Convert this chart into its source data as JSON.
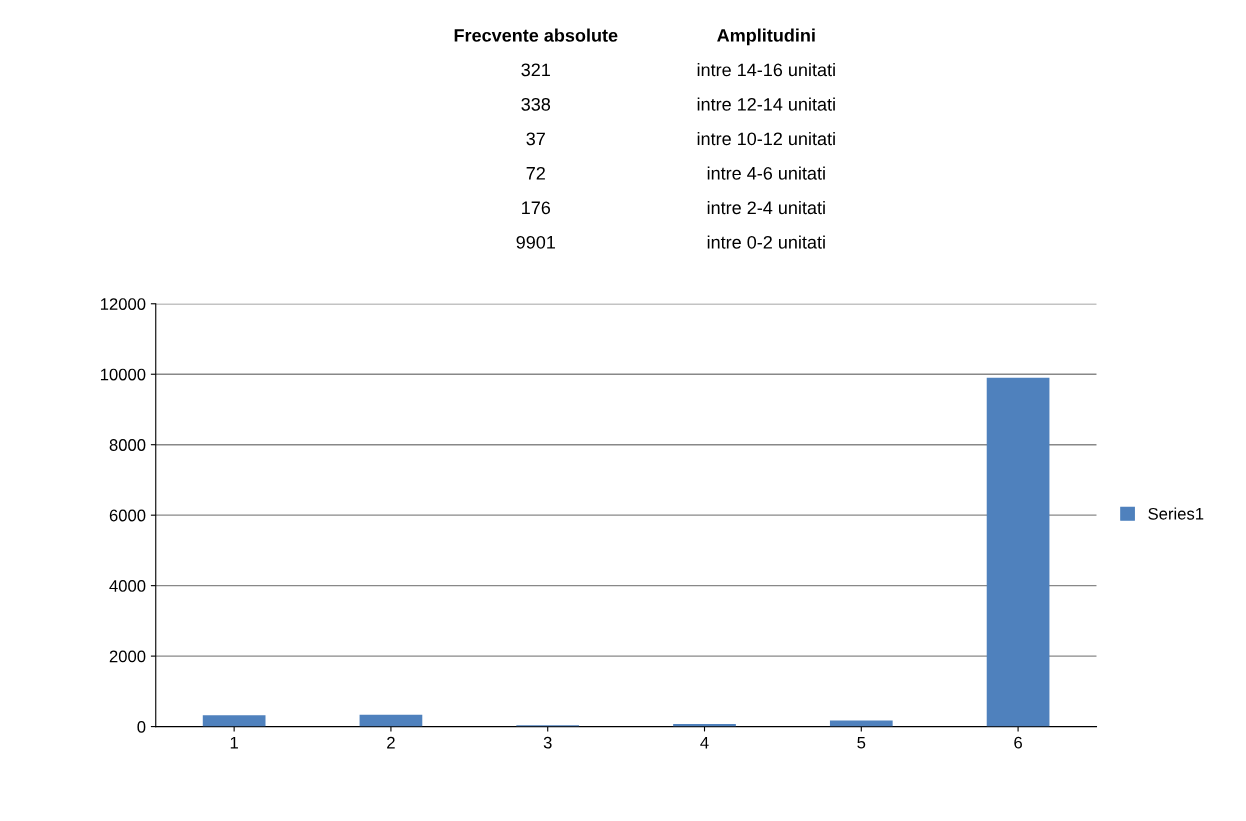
{
  "chart_data": {
    "type": "bar",
    "categories": [
      "1",
      "2",
      "3",
      "4",
      "5",
      "6"
    ],
    "series": [
      {
        "name": "Series1",
        "color": "#4f81bd",
        "values": [
          321,
          338,
          37,
          72,
          176,
          9901
        ]
      }
    ],
    "ylim": [
      0,
      12000
    ],
    "yticks": [
      0,
      2000,
      4000,
      6000,
      8000,
      10000,
      12000
    ],
    "grid": "y",
    "legend": "right",
    "annotations": [
      "Frecvente absolute",
      "Amplitudini",
      "321",
      "intre 14-16 unitati",
      "338",
      "intre 12-14 unitati",
      "37",
      "intre 10-12 unitati",
      "72",
      "intre 4-6 unitati",
      "176",
      "intre 2-4 unitati",
      "9901",
      "intre 0-2 unitati"
    ]
  }
}
